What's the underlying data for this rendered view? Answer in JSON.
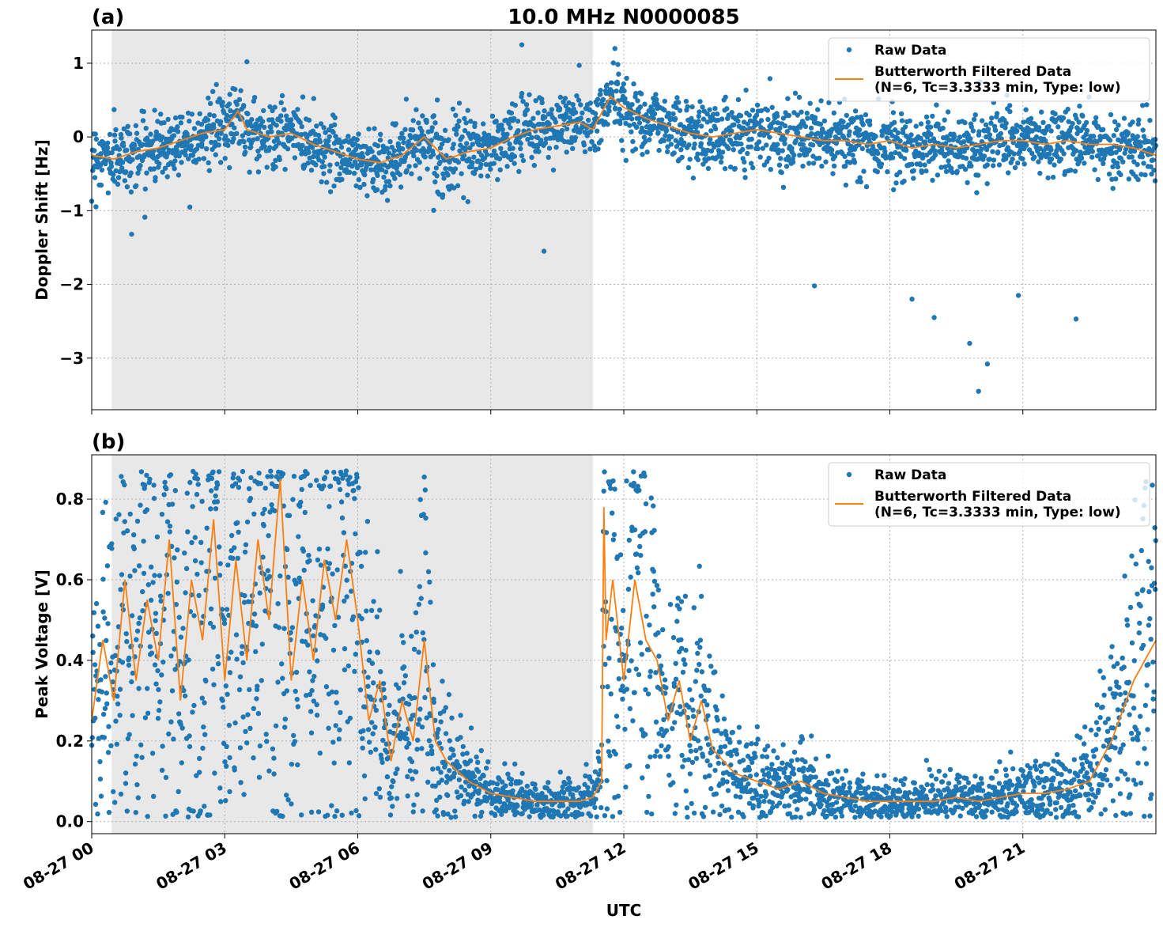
{
  "figure": {
    "title": "10.0 MHz N0000085",
    "xlabel": "UTC",
    "x_ticks": [
      "08-27 00",
      "08-27 03",
      "08-27 06",
      "08-27 09",
      "08-27 12",
      "08-27 15",
      "08-27 18",
      "08-27 21"
    ],
    "x_tick_hours": [
      0,
      3,
      6,
      9,
      12,
      15,
      18,
      21
    ],
    "x_range_hours": [
      0,
      24
    ],
    "night_shading_hours": [
      0.45,
      11.3
    ],
    "colors": {
      "raw": "#1f77b4",
      "filtered": "#ff7f0e",
      "shading": "#e8e8e8",
      "grid": "#b0b0b0"
    }
  },
  "chart_data": [
    {
      "panel_label": "(a)",
      "type": "scatter",
      "ylabel": "Doppler Shift [Hz]",
      "ylim": [
        -3.7,
        1.45
      ],
      "y_ticks": [
        1,
        0,
        -1,
        -2,
        -3
      ],
      "y_tick_labels": [
        "1",
        "0",
        "−1",
        "−2",
        "−3"
      ],
      "grid": true,
      "legend": {
        "placement": "upper-right",
        "entries": [
          "Raw Data",
          "Butterworth Filtered Data",
          "(N=6, Tc=3.3333 min, Type: low)"
        ]
      },
      "series": [
        {
          "name": "Butterworth Filtered Data",
          "x": [
            0,
            0.5,
            1,
            1.5,
            2,
            2.5,
            3,
            3.3,
            3.5,
            4,
            4.5,
            5,
            5.5,
            6,
            6.5,
            7,
            7.5,
            8,
            8.5,
            9,
            9.5,
            10,
            10.5,
            11,
            11.3,
            11.7,
            12,
            12.5,
            13,
            13.5,
            14,
            14.5,
            15,
            15.5,
            16,
            16.5,
            17,
            17.5,
            18,
            18.5,
            19,
            19.5,
            20,
            20.5,
            21,
            21.5,
            22,
            22.5,
            23,
            23.5,
            24
          ],
          "y": [
            -0.25,
            -0.3,
            -0.2,
            -0.15,
            -0.05,
            0.05,
            0.1,
            0.35,
            0.1,
            0.0,
            0.05,
            -0.1,
            -0.2,
            -0.3,
            -0.35,
            -0.25,
            0.0,
            -0.3,
            -0.2,
            -0.15,
            0.0,
            0.1,
            0.15,
            0.2,
            0.1,
            0.55,
            0.4,
            0.25,
            0.15,
            0.05,
            0.0,
            0.05,
            0.1,
            0.05,
            0.0,
            -0.05,
            -0.05,
            -0.1,
            -0.05,
            -0.15,
            -0.1,
            -0.15,
            -0.1,
            -0.05,
            -0.05,
            -0.1,
            -0.05,
            -0.1,
            -0.1,
            -0.15,
            -0.25
          ]
        },
        {
          "name": "Raw Data",
          "x_hours_range": [
            0,
            24
          ],
          "center_follows": "Butterworth Filtered Data",
          "spread_hz_approx": 0.45,
          "extremes": [
            {
              "x": 0.9,
              "y": -1.32
            },
            {
              "x": 3.5,
              "y": 1.02
            },
            {
              "x": 10.2,
              "y": -1.55
            },
            {
              "x": 9.7,
              "y": 1.25
            },
            {
              "x": 11.8,
              "y": 1.2
            },
            {
              "x": 16.3,
              "y": -2.02
            },
            {
              "x": 18.5,
              "y": -2.2
            },
            {
              "x": 19.0,
              "y": -2.45
            },
            {
              "x": 19.8,
              "y": -2.8
            },
            {
              "x": 20.0,
              "y": -3.45
            },
            {
              "x": 20.2,
              "y": -3.08
            },
            {
              "x": 20.9,
              "y": -2.15
            },
            {
              "x": 22.2,
              "y": -2.47
            }
          ]
        }
      ]
    },
    {
      "panel_label": "(b)",
      "type": "scatter",
      "ylabel": "Peak Voltage [V]",
      "ylim": [
        -0.03,
        0.91
      ],
      "y_ticks": [
        0.0,
        0.2,
        0.4,
        0.6,
        0.8
      ],
      "y_tick_labels": [
        "0.0",
        "0.2",
        "0.4",
        "0.6",
        "0.8"
      ],
      "grid": true,
      "legend": {
        "placement": "upper-right",
        "entries": [
          "Raw Data",
          "Butterworth Filtered Data",
          "(N=6, Tc=3.3333 min, Type: low)"
        ]
      },
      "series": [
        {
          "name": "Butterworth Filtered Data",
          "x": [
            0,
            0.25,
            0.5,
            0.75,
            1,
            1.25,
            1.5,
            1.75,
            2,
            2.25,
            2.5,
            2.75,
            3,
            3.25,
            3.5,
            3.75,
            4,
            4.25,
            4.5,
            4.75,
            5,
            5.25,
            5.5,
            5.75,
            6,
            6.25,
            6.5,
            6.75,
            7,
            7.25,
            7.5,
            7.75,
            8,
            8.5,
            9,
            9.5,
            10,
            10.5,
            11,
            11.3,
            11.5,
            11.55,
            11.6,
            11.75,
            12,
            12.25,
            12.5,
            12.75,
            13,
            13.25,
            13.5,
            13.75,
            14,
            14.5,
            15,
            15.5,
            16,
            16.5,
            17,
            17.5,
            18,
            18.5,
            19,
            19.5,
            20,
            20.5,
            21,
            21.5,
            22,
            22.5,
            23,
            23.5,
            24
          ],
          "y": [
            0.25,
            0.45,
            0.3,
            0.6,
            0.35,
            0.55,
            0.4,
            0.7,
            0.3,
            0.6,
            0.45,
            0.75,
            0.35,
            0.65,
            0.4,
            0.7,
            0.5,
            0.85,
            0.35,
            0.6,
            0.4,
            0.65,
            0.5,
            0.7,
            0.5,
            0.25,
            0.35,
            0.15,
            0.3,
            0.2,
            0.45,
            0.2,
            0.15,
            0.1,
            0.07,
            0.06,
            0.05,
            0.05,
            0.05,
            0.06,
            0.1,
            0.78,
            0.45,
            0.6,
            0.35,
            0.6,
            0.45,
            0.4,
            0.25,
            0.35,
            0.2,
            0.3,
            0.18,
            0.12,
            0.1,
            0.08,
            0.1,
            0.07,
            0.06,
            0.05,
            0.05,
            0.05,
            0.05,
            0.06,
            0.05,
            0.06,
            0.07,
            0.07,
            0.08,
            0.1,
            0.2,
            0.35,
            0.45
          ]
        },
        {
          "name": "Raw Data",
          "x_hours_range": [
            0,
            24
          ],
          "center_follows": "Butterworth Filtered Data",
          "max_v_approx": 0.87
        }
      ]
    }
  ]
}
